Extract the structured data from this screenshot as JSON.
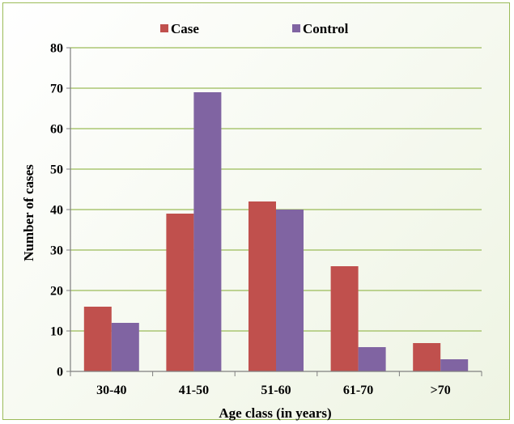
{
  "chart_data": {
    "type": "bar",
    "title": "",
    "xlabel": "Age class (in years)",
    "ylabel": "Number of cases",
    "categories": [
      "30-40",
      "41-50",
      "51-60",
      "61-70",
      ">70"
    ],
    "series": [
      {
        "name": "Case",
        "values": [
          16,
          39,
          42,
          26,
          7
        ],
        "color": "#c0504d"
      },
      {
        "name": "Control",
        "values": [
          12,
          69,
          40,
          6,
          3
        ],
        "color": "#8064a2"
      }
    ],
    "ylim": [
      0,
      80
    ],
    "yticks": [
      0,
      10,
      20,
      30,
      40,
      50,
      60,
      70,
      80
    ],
    "grid": true,
    "legend": "top",
    "colors": {
      "grid": "#9bbb59",
      "axis": "#7f7f7f",
      "border": "#9bbb59"
    }
  }
}
